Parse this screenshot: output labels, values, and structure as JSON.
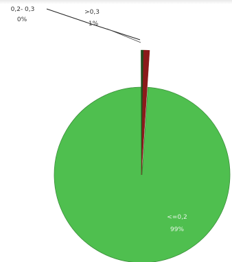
{
  "chart_data": {
    "type": "pie",
    "title": "",
    "slices": [
      {
        "label": "<=0,2",
        "percent_label": "99%",
        "value": 99.4,
        "color": "#4fbf4f",
        "label_style": "inside"
      },
      {
        "label": "0,2- 0,3",
        "percent_label": "0%",
        "value": 0.1,
        "color": "#1f4f1f",
        "label_style": "leader"
      },
      {
        "label": ">0,3",
        "percent_label": "1%",
        "value": 0.5,
        "color": "#8b1a1a",
        "label_style": "leader"
      }
    ],
    "start_angle_deg": 0,
    "direction": "clockwise",
    "exploded": true,
    "legend": "none"
  }
}
